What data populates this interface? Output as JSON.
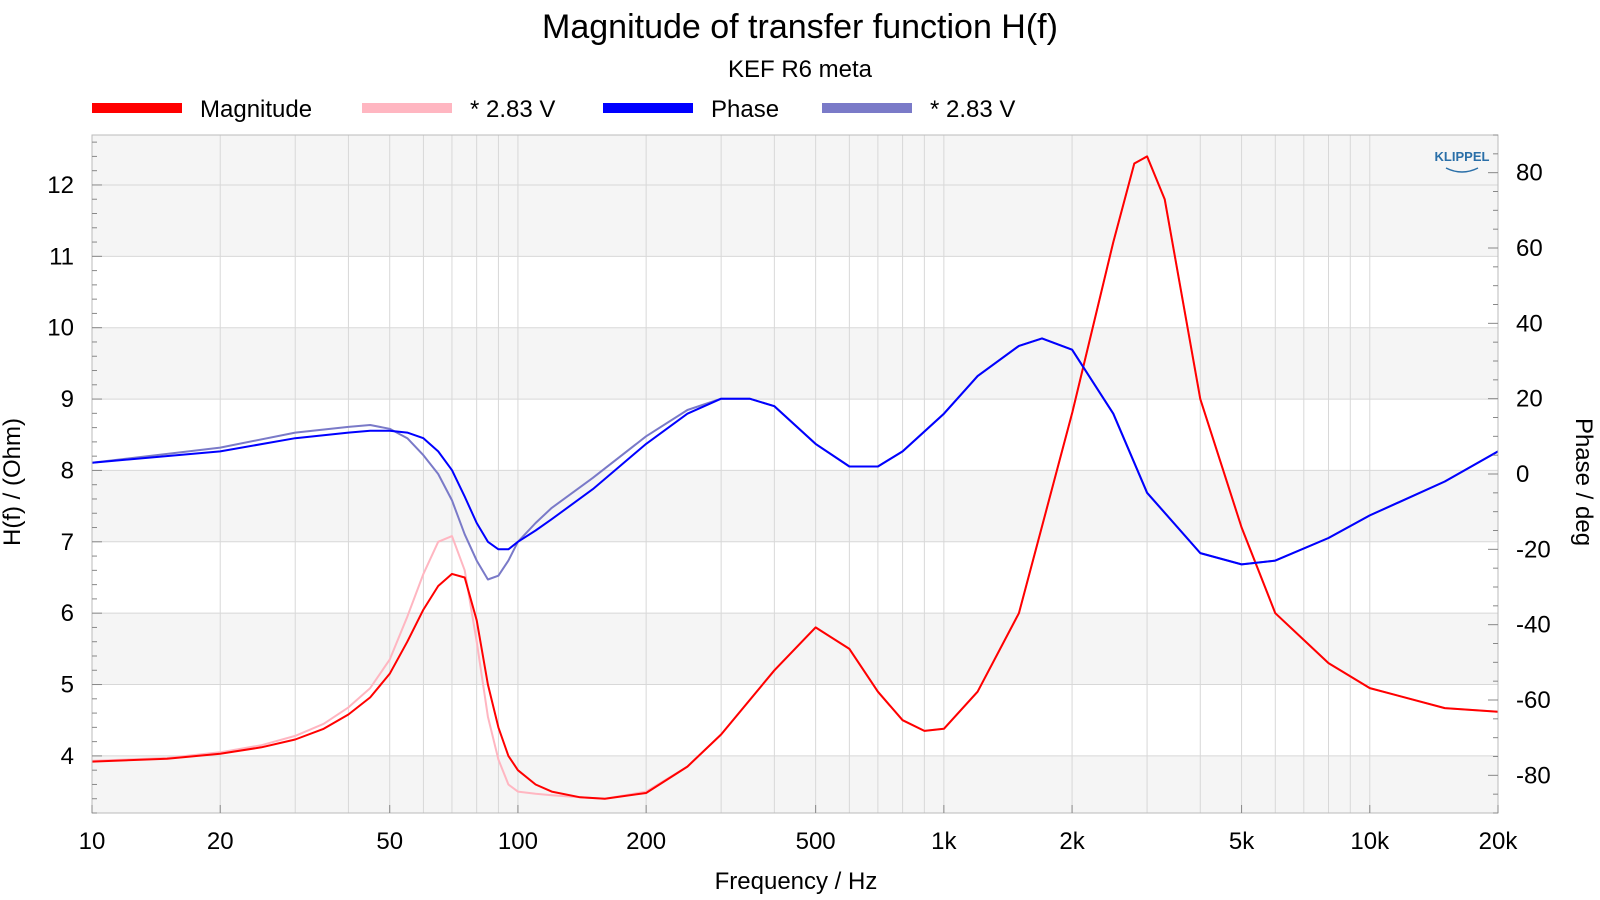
{
  "chart_data": {
    "type": "line",
    "title": "Magnitude of transfer function H(f)",
    "subtitle": "KEF R6 meta",
    "xlabel": "Frequency / Hz",
    "ylabel": "H(f) / (Ohm)",
    "y2label": "Phase / deg",
    "xscale": "log",
    "xlim": [
      10,
      20000
    ],
    "ylim": [
      3.2,
      12.7
    ],
    "y2lim": [
      -90,
      90
    ],
    "grid": true,
    "legend_position": "top",
    "watermark": "KLIPPEL",
    "x_ticks": [
      {
        "value": 10,
        "label": "10"
      },
      {
        "value": 20,
        "label": "20"
      },
      {
        "value": 50,
        "label": "50"
      },
      {
        "value": 100,
        "label": "100"
      },
      {
        "value": 200,
        "label": "200"
      },
      {
        "value": 500,
        "label": "500"
      },
      {
        "value": 1000,
        "label": "1k"
      },
      {
        "value": 2000,
        "label": "2k"
      },
      {
        "value": 5000,
        "label": "5k"
      },
      {
        "value": 10000,
        "label": "10k"
      },
      {
        "value": 20000,
        "label": "20k"
      }
    ],
    "y_ticks": [
      4,
      5,
      6,
      7,
      8,
      9,
      10,
      11,
      12
    ],
    "y2_ticks": [
      -80,
      -60,
      -40,
      -20,
      0,
      20,
      40,
      60,
      80
    ],
    "legend": [
      {
        "label": "Magnitude",
        "color": "#ff0000"
      },
      {
        "label": "* 2.83 V",
        "color": "#ffb6c1"
      },
      {
        "label": "Phase",
        "color": "#0000ff"
      },
      {
        "label": "* 2.83 V",
        "color": "#7a7ac8"
      }
    ],
    "series": [
      {
        "name": "* 2.83 V",
        "axis": "left",
        "color": "#ffb6c1",
        "x": [
          10,
          15,
          20,
          25,
          30,
          35,
          40,
          45,
          50,
          55,
          60,
          65,
          70,
          75,
          80,
          85,
          90,
          95,
          100,
          110,
          120,
          140,
          160,
          200,
          250,
          300,
          400,
          500,
          600,
          700,
          800,
          900,
          1000,
          1200,
          1500,
          2000,
          2500,
          2800,
          3000,
          3300,
          4000,
          5000,
          6000,
          8000,
          10000,
          15000,
          20000
        ],
        "y": [
          3.93,
          3.97,
          4.05,
          4.15,
          4.28,
          4.45,
          4.68,
          4.95,
          5.35,
          5.95,
          6.55,
          7.0,
          7.08,
          6.6,
          5.6,
          4.55,
          3.95,
          3.6,
          3.5,
          3.47,
          3.45,
          3.42,
          3.4,
          3.5,
          3.85,
          4.3,
          5.2,
          5.8,
          5.5,
          4.9,
          4.5,
          4.35,
          4.38,
          4.9,
          6.0,
          8.8,
          11.2,
          12.3,
          12.4,
          11.8,
          9.0,
          7.2,
          6.0,
          5.3,
          4.95,
          4.67,
          4.62
        ]
      },
      {
        "name": "Magnitude",
        "axis": "left",
        "color": "#ff0000",
        "x": [
          10,
          15,
          20,
          25,
          30,
          35,
          40,
          45,
          50,
          55,
          60,
          65,
          70,
          75,
          80,
          85,
          90,
          95,
          100,
          110,
          120,
          140,
          160,
          200,
          250,
          300,
          400,
          500,
          600,
          700,
          800,
          900,
          1000,
          1200,
          1500,
          2000,
          2500,
          2800,
          3000,
          3300,
          4000,
          5000,
          6000,
          8000,
          10000,
          15000,
          20000
        ],
        "y": [
          3.92,
          3.96,
          4.03,
          4.12,
          4.23,
          4.38,
          4.58,
          4.82,
          5.15,
          5.6,
          6.05,
          6.38,
          6.55,
          6.5,
          5.9,
          5.0,
          4.4,
          4.0,
          3.8,
          3.6,
          3.5,
          3.42,
          3.4,
          3.48,
          3.85,
          4.3,
          5.2,
          5.8,
          5.5,
          4.9,
          4.5,
          4.35,
          4.38,
          4.9,
          6.0,
          8.8,
          11.2,
          12.3,
          12.4,
          11.8,
          9.0,
          7.2,
          6.0,
          5.3,
          4.95,
          4.67,
          4.62
        ]
      },
      {
        "name": "* 2.83 V",
        "axis": "right",
        "color": "#7a7ac8",
        "x": [
          10,
          20,
          30,
          40,
          45,
          50,
          55,
          60,
          65,
          70,
          75,
          80,
          85,
          90,
          95,
          100,
          110,
          120,
          150,
          200,
          250,
          300,
          350,
          400,
          500,
          600,
          700,
          800,
          1000,
          1200,
          1500,
          1700,
          2000,
          2500,
          3000,
          4000,
          5000,
          6000,
          8000,
          10000,
          15000,
          20000
        ],
        "y": [
          3,
          7,
          11,
          12.5,
          13,
          12,
          9.5,
          5,
          0,
          -7,
          -16,
          -23,
          -28,
          -27,
          -23,
          -18,
          -13,
          -9,
          -1,
          10,
          17,
          20,
          20,
          18,
          8,
          2,
          2,
          6,
          16,
          26,
          34,
          36,
          33,
          16,
          -5,
          -21,
          -24,
          -23,
          -17,
          -11,
          -2,
          6
        ]
      },
      {
        "name": "Phase",
        "axis": "right",
        "color": "#0000ff",
        "x": [
          10,
          20,
          30,
          40,
          45,
          50,
          55,
          60,
          65,
          70,
          75,
          80,
          85,
          90,
          95,
          100,
          110,
          120,
          150,
          200,
          250,
          300,
          350,
          400,
          500,
          600,
          700,
          800,
          1000,
          1200,
          1500,
          1700,
          2000,
          2500,
          3000,
          4000,
          5000,
          6000,
          8000,
          10000,
          15000,
          20000
        ],
        "y": [
          3,
          6,
          9.5,
          11,
          11.5,
          11.5,
          11,
          9.5,
          6,
          1,
          -6,
          -13,
          -18,
          -20,
          -20,
          -18,
          -15,
          -12,
          -4,
          8,
          16,
          20,
          20,
          18,
          8,
          2,
          2,
          6,
          16,
          26,
          34,
          36,
          33,
          16,
          -5,
          -21,
          -24,
          -23,
          -17,
          -11,
          -2,
          6
        ]
      }
    ]
  }
}
